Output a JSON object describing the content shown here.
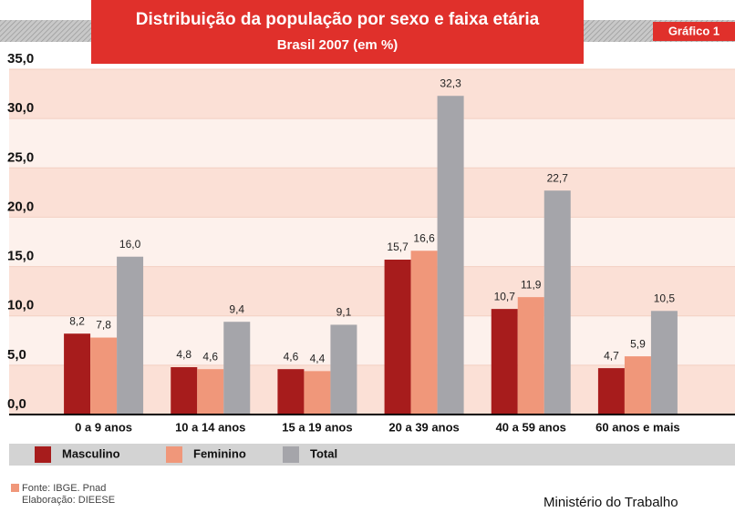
{
  "chart_data": {
    "type": "bar",
    "title": "Distribuição da população por sexo e faixa etária",
    "subtitle": "Brasil 2007 (em %)",
    "badge": "Gráfico 1",
    "categories": [
      "0 a 9 anos",
      "10 a 14 anos",
      "15 a 19 anos",
      "20 a 39 anos",
      "40 a 59 anos",
      "60 anos e mais"
    ],
    "series": [
      {
        "name": "Masculino",
        "color": "#a71c1c",
        "values": [
          8.2,
          4.8,
          4.6,
          15.7,
          10.7,
          4.7
        ],
        "value_labels": [
          "8,2",
          "4,8",
          "4,6",
          "15,7",
          "10,7",
          "4,7"
        ]
      },
      {
        "name": "Feminino",
        "color": "#f0977a",
        "values": [
          7.8,
          4.6,
          4.4,
          16.6,
          11.9,
          5.9
        ],
        "value_labels": [
          "7,8",
          "4,6",
          "4,4",
          "16,6",
          "11,9",
          "5,9"
        ]
      },
      {
        "name": "Total",
        "color": "#a5a5aa",
        "values": [
          16.0,
          9.4,
          9.1,
          32.3,
          22.7,
          10.5
        ],
        "value_labels": [
          "16,0",
          "9,4",
          "9,1",
          "32,3",
          "22,7",
          "10,5"
        ]
      }
    ],
    "ylim": [
      0,
      35
    ],
    "yticks": [
      {
        "value": 0,
        "label": "0,0"
      },
      {
        "value": 5,
        "label": "5,0"
      },
      {
        "value": 10,
        "label": "10,0"
      },
      {
        "value": 15,
        "label": "15,0"
      },
      {
        "value": 20,
        "label": "20,0"
      },
      {
        "value": 25,
        "label": "25,0"
      },
      {
        "value": 30,
        "label": "30,0"
      },
      {
        "value": 35,
        "label": "35,0"
      }
    ],
    "source": [
      "Fonte: IBGE. Pnad",
      "Elaboração: DIEESE"
    ],
    "footer": "Ministério do Trabalho"
  }
}
